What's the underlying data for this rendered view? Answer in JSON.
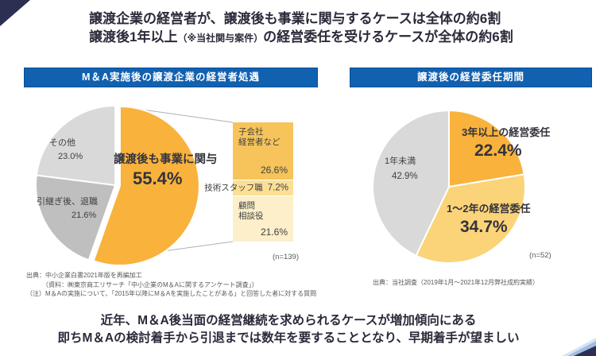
{
  "header": {
    "line1": "譲渡企業の経営者が、譲渡後も事業に関与するケースは全体の約6割",
    "line2_prefix": "譲渡後1年以上",
    "line2_note": "（※当社関与案件）",
    "line2_suffix": "の経営委任を受けるケースが全体の約6割"
  },
  "left_panel": {
    "title": "M＆A実施後の譲渡企業の経営者処遇",
    "sample_size": "(n=139)",
    "notes": [
      "出典：中小企業白書2021年版を再編加工",
      "　　　（資料：㈱東京商工リサーチ「中小企業のM＆Aに関するアンケート調査」）",
      "（注）M＆Aの実施について、「2015年以降にM＆Aを実施したことがある」と回答した者に対する質問"
    ]
  },
  "right_panel": {
    "title": "譲渡後の経営委任期間",
    "sample_size": "(n=52)",
    "source": "出典：当社調査（2019年1月～2021年12月弊社成約実績）"
  },
  "footer": {
    "line1": "近年、M＆A後当面の経営継続を求められるケースが増加傾向にある",
    "line2": "即ちM＆Aの検討着手から引退までは数年を要することとなり、早期着手が望ましい"
  },
  "colors": {
    "header_bar_blue": "#1161B1",
    "accent_orange": "#F9B23C",
    "accent_navy": "#2B3053"
  },
  "chart_data": [
    {
      "type": "pie",
      "title": "M＆A実施後の譲渡企業の経営者処遇",
      "n": 139,
      "legend_position": "inside",
      "slices": [
        {
          "label": "譲渡後も事業に関与",
          "value": 55.4,
          "value_text": "55.4%",
          "color": "#F9B23C",
          "exploded": true
        },
        {
          "label": "引継ぎ後、退職",
          "value": 21.6,
          "value_text": "21.6%",
          "color": "#BFBFBF"
        },
        {
          "label": "その他",
          "value": 23.0,
          "value_text": "23.0%",
          "color": "#D9D9D9"
        }
      ],
      "breakdown": {
        "of_slice": "譲渡後も事業に関与",
        "segments": [
          {
            "label": "子会社経営者など",
            "lines": [
              "子会社",
              "経営者など"
            ],
            "value": 26.6,
            "value_text": "26.6%",
            "color": "#F6C45B"
          },
          {
            "label": "技術スタッフ職",
            "lines": [
              "技術スタッフ職"
            ],
            "value": 7.2,
            "value_text": "7.2%",
            "color": "#FBDF94"
          },
          {
            "label": "顧問相談役",
            "lines": [
              "顧問",
              "相談役"
            ],
            "value": 21.6,
            "value_text": "21.6%",
            "color": "#FCEFC9"
          }
        ]
      }
    },
    {
      "type": "pie",
      "title": "譲渡後の経営委任期間",
      "n": 52,
      "legend_position": "inside",
      "slices": [
        {
          "label": "3年以上の経営委任",
          "value": 22.4,
          "value_text": "22.4%",
          "color": "#F9B23C"
        },
        {
          "label": "1～2年の経営委任",
          "value": 34.7,
          "value_text": "34.7%",
          "color": "#FBD378"
        },
        {
          "label": "1年未満",
          "value": 42.9,
          "value_text": "42.9%",
          "color": "#D9D9D9"
        }
      ]
    }
  ]
}
